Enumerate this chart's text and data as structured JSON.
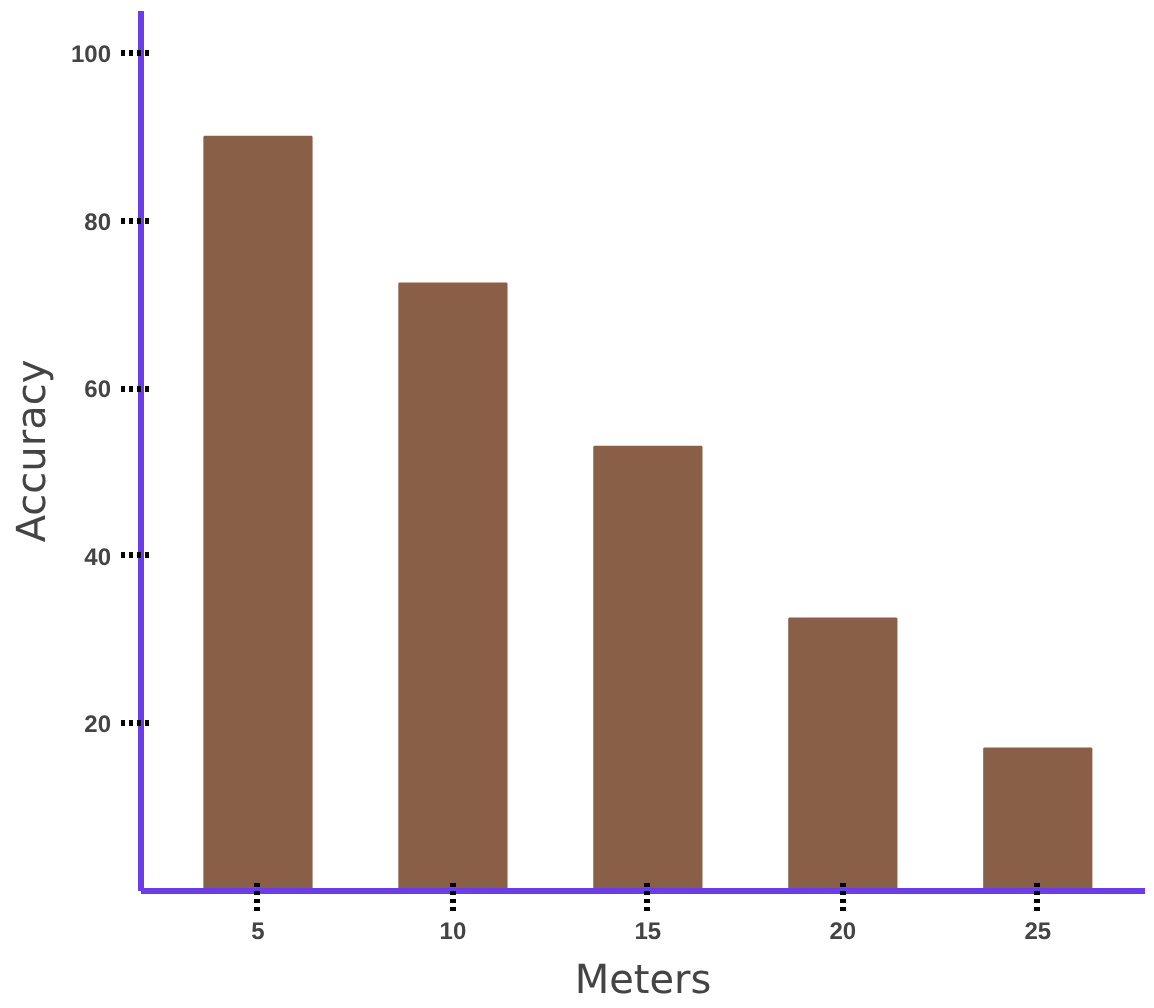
{
  "chart_data": {
    "type": "bar",
    "xlabel": "Meters",
    "ylabel": "Accuracy",
    "categories": [
      "5",
      "10",
      "15",
      "20",
      "25"
    ],
    "values": [
      90,
      72.5,
      53,
      32.5,
      17
    ],
    "color": "#8a5f48",
    "ylim": [
      0,
      105
    ],
    "yticks": [
      20,
      40,
      60,
      80,
      100
    ],
    "grid": false
  }
}
